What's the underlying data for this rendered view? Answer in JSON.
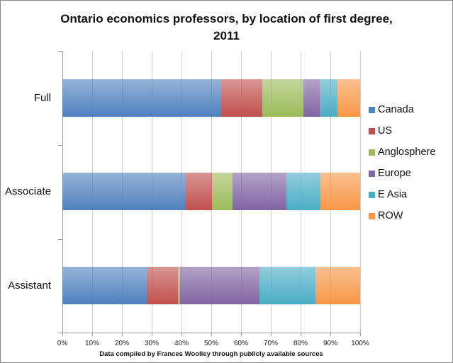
{
  "chart_data": {
    "type": "bar",
    "orientation": "horizontal",
    "stacked": "percent",
    "title": "Ontario economics professors, by location of first degree, 2011",
    "title_lines": [
      "Ontario economics professors, by location of first degree,",
      "2011"
    ],
    "xlabel": "Data compiled by Frances Woolley through publicly available sources",
    "ylabel": "",
    "categories": [
      "Full",
      "Associate",
      "Assistant"
    ],
    "series": [
      {
        "name": "Canada",
        "color": "#4f81bd",
        "values": [
          53.4,
          41.3,
          28.3
        ]
      },
      {
        "name": "US",
        "color": "#c0504d",
        "values": [
          13.8,
          9.0,
          10.4
        ]
      },
      {
        "name": "Anglosphere",
        "color": "#9bbb59",
        "values": [
          13.8,
          6.9,
          0.9
        ]
      },
      {
        "name": "Europe",
        "color": "#8064a2",
        "values": [
          5.4,
          18.0,
          26.5
        ]
      },
      {
        "name": "E Asia",
        "color": "#4bacc6",
        "values": [
          5.9,
          11.4,
          18.9
        ]
      },
      {
        "name": "ROW",
        "color": "#f79646",
        "values": [
          7.7,
          13.4,
          15.0
        ]
      }
    ],
    "xlim": [
      0,
      100
    ],
    "xticks": [
      "0%",
      "10%",
      "20%",
      "30%",
      "40%",
      "50%",
      "60%",
      "70%",
      "80%",
      "90%",
      "100%"
    ],
    "grid": "vertical",
    "legend_position": "right"
  }
}
